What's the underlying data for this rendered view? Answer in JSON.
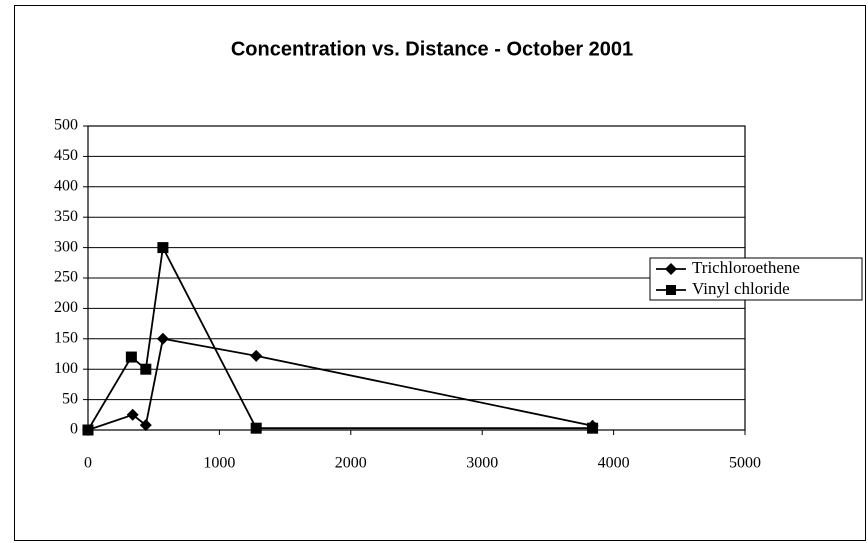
{
  "chart_data": {
    "type": "line",
    "title": "Concentration vs. Distance - October 2001",
    "series": [
      {
        "name": "Trichloroethene",
        "color": "#000000",
        "marker": "diamond",
        "x": [
          0,
          340,
          440,
          570,
          1280,
          3840
        ],
        "values": [
          0,
          25,
          8,
          150,
          122,
          7
        ]
      },
      {
        "name": "Vinyl chloride",
        "color": "#000000",
        "marker": "square",
        "x": [
          0,
          330,
          440,
          570,
          1280,
          3840
        ],
        "values": [
          0,
          120,
          100,
          300,
          3,
          3
        ]
      }
    ],
    "xlim": [
      0,
      5000
    ],
    "xticks": [
      0,
      1000,
      2000,
      3000,
      4000,
      5000
    ],
    "ylim": [
      0,
      500
    ],
    "yticks": [
      0,
      50,
      100,
      150,
      200,
      250,
      300,
      350,
      400,
      450,
      500
    ],
    "grid": true,
    "legend": "right"
  }
}
